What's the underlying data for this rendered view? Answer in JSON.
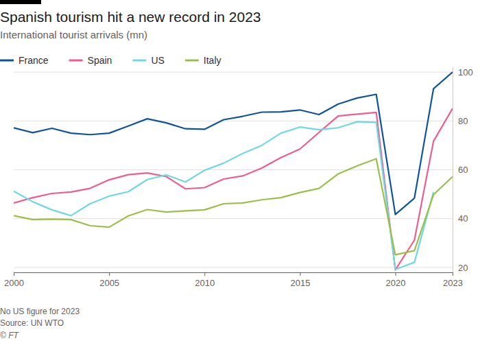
{
  "chart_data": {
    "type": "line",
    "title": "Spanish tourism hit a new record in 2023",
    "subtitle": "International tourist arrivals (mn)",
    "note": "No US figure for 2023",
    "source": "Source: UN WTO",
    "credit": "© FT",
    "x": [
      2000,
      2001,
      2002,
      2003,
      2004,
      2005,
      2006,
      2007,
      2008,
      2009,
      2010,
      2011,
      2012,
      2013,
      2014,
      2015,
      2016,
      2017,
      2018,
      2019,
      2020,
      2021,
      2022,
      2023
    ],
    "series": [
      {
        "name": "France",
        "color": "#0f5499",
        "values": [
          77.2,
          75.2,
          77.0,
          75.0,
          74.4,
          75.0,
          77.9,
          80.9,
          79.2,
          76.8,
          76.6,
          80.5,
          81.9,
          83.6,
          83.7,
          84.5,
          82.6,
          86.9,
          89.4,
          90.9,
          41.7,
          48.4,
          93.2,
          100.0
        ]
      },
      {
        "name": "Spain",
        "color": "#eb5e8d",
        "values": [
          46.4,
          48.6,
          50.3,
          50.9,
          52.4,
          55.9,
          58.0,
          58.7,
          57.2,
          52.2,
          52.7,
          56.2,
          57.5,
          60.7,
          65.0,
          68.5,
          75.3,
          82.0,
          82.8,
          83.5,
          19.0,
          31.2,
          71.7,
          85.1
        ]
      },
      {
        "name": "US",
        "color": "#6fd8e0",
        "values": [
          51.2,
          46.9,
          43.6,
          41.2,
          46.1,
          49.2,
          51.0,
          56.0,
          57.9,
          55.0,
          59.8,
          62.7,
          66.7,
          70.0,
          75.0,
          77.5,
          76.4,
          77.2,
          79.7,
          79.4,
          19.2,
          22.1,
          50.9,
          null
        ]
      },
      {
        "name": "Italy",
        "color": "#9cbf4a",
        "values": [
          41.2,
          39.6,
          39.8,
          39.6,
          37.1,
          36.5,
          41.1,
          43.7,
          42.7,
          43.2,
          43.6,
          46.1,
          46.4,
          47.7,
          48.6,
          50.7,
          52.4,
          58.3,
          61.6,
          64.5,
          25.2,
          26.9,
          49.8,
          57.2
        ]
      }
    ],
    "xlim": [
      2000,
      2023
    ],
    "xticks": [
      2000,
      2005,
      2010,
      2015,
      2020,
      2023
    ],
    "ylim": [
      18,
      102
    ],
    "yticks": [
      20,
      40,
      60,
      80,
      100
    ],
    "grid": true,
    "legend": "top-left"
  }
}
